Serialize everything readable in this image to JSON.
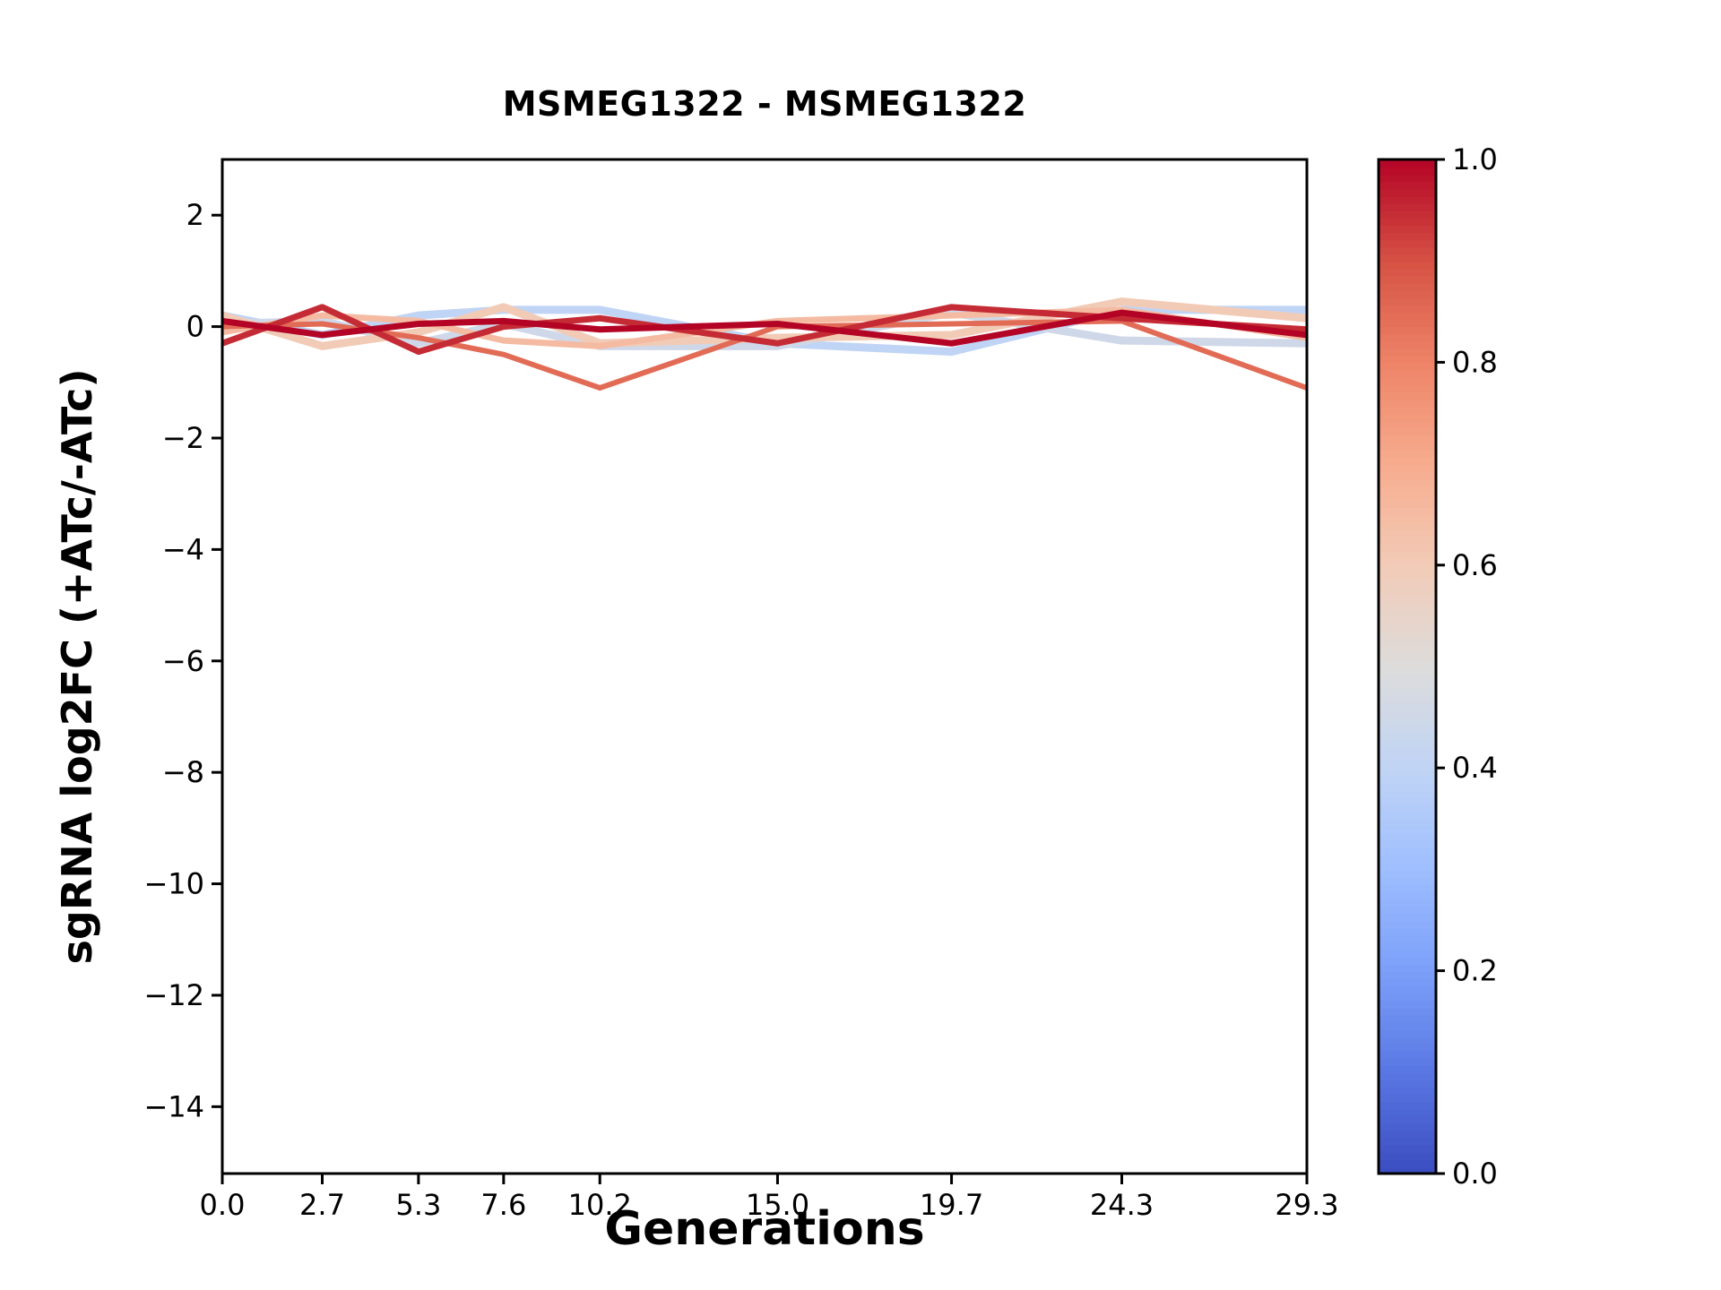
{
  "figure": {
    "background": "#ffffff",
    "axis_color": "#000000"
  },
  "chart_data": {
    "type": "line",
    "title": "MSMEG1322 - MSMEG1322",
    "xlabel": "Generations",
    "ylabel": "sgRNA log2FC (+ATc/-ATc)",
    "grid": false,
    "legend": "none",
    "x": [
      0.0,
      2.7,
      5.3,
      7.6,
      10.2,
      15.0,
      19.7,
      24.3,
      29.3
    ],
    "xlim": [
      0.0,
      29.3
    ],
    "ylim": [
      -15.2,
      3.0
    ],
    "xtick_labels": [
      "0.0",
      "2.7",
      "5.3",
      "7.6",
      "10.2",
      "15.0",
      "19.7",
      "24.3",
      "29.3"
    ],
    "ytick_values": [
      2,
      0,
      -2,
      -4,
      -6,
      -8,
      -10,
      -12,
      -14
    ],
    "ytick_labels": [
      "2",
      "0",
      "−2",
      "−4",
      "−6",
      "−8",
      "−10",
      "−12",
      "−14"
    ],
    "series": [
      {
        "name": "line_1",
        "color_value": 0.4,
        "linewidth": 9,
        "values": [
          0.2,
          -0.15,
          0.2,
          0.3,
          0.3,
          -0.3,
          -0.45,
          0.3,
          0.3
        ]
      },
      {
        "name": "line_2",
        "color_value": 0.45,
        "linewidth": 9,
        "values": [
          0.05,
          0.1,
          -0.3,
          0.05,
          -0.35,
          -0.35,
          0.25,
          -0.25,
          -0.3
        ]
      },
      {
        "name": "line_3",
        "color_value": 0.6,
        "linewidth": 9,
        "values": [
          0.2,
          -0.35,
          -0.1,
          0.35,
          -0.3,
          -0.2,
          -0.15,
          0.45,
          0.15
        ]
      },
      {
        "name": "line_4",
        "color_value": 0.65,
        "linewidth": 7,
        "values": [
          -0.1,
          0.2,
          0.1,
          -0.25,
          -0.35,
          0.1,
          0.2,
          0.3,
          -0.2
        ]
      },
      {
        "name": "line_5",
        "color_value": 0.85,
        "linewidth": 6,
        "values": [
          0.0,
          0.05,
          -0.2,
          -0.5,
          -1.1,
          0.0,
          0.05,
          0.1,
          -1.1
        ]
      },
      {
        "name": "line_6",
        "color_value": 0.95,
        "linewidth": 7,
        "values": [
          -0.3,
          0.35,
          -0.45,
          0.0,
          0.15,
          -0.3,
          0.35,
          0.15,
          -0.05
        ]
      },
      {
        "name": "line_7",
        "color_value": 1.0,
        "linewidth": 7,
        "values": [
          0.1,
          -0.15,
          0.05,
          0.1,
          -0.05,
          0.05,
          -0.3,
          0.25,
          -0.15
        ]
      }
    ],
    "colorbar": {
      "orientation": "vertical",
      "range": [
        0.0,
        1.0
      ],
      "tick_values": [
        0.0,
        0.2,
        0.4,
        0.6,
        0.8,
        1.0
      ],
      "tick_labels": [
        "0.0",
        "0.2",
        "0.4",
        "0.6",
        "0.8",
        "1.0"
      ],
      "colormap": "coolwarm",
      "colormap_stops": [
        {
          "pos": 0.0,
          "color": "#3b4cc0"
        },
        {
          "pos": 0.1,
          "color": "#5977e3"
        },
        {
          "pos": 0.2,
          "color": "#7b9ff9"
        },
        {
          "pos": 0.3,
          "color": "#9ebeff"
        },
        {
          "pos": 0.4,
          "color": "#c0d4f5"
        },
        {
          "pos": 0.5,
          "color": "#dddcdc"
        },
        {
          "pos": 0.6,
          "color": "#f2cbb7"
        },
        {
          "pos": 0.7,
          "color": "#f7ac8e"
        },
        {
          "pos": 0.8,
          "color": "#ee8468"
        },
        {
          "pos": 0.9,
          "color": "#d65244"
        },
        {
          "pos": 1.0,
          "color": "#b40426"
        }
      ]
    }
  }
}
